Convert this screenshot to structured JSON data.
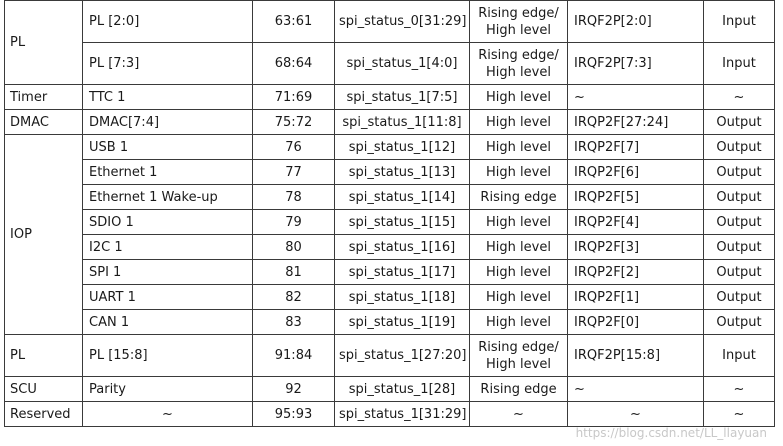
{
  "rows": [
    {
      "group": "PL",
      "name": "PL [2:0]",
      "irq": "63:61",
      "spi": "spi_status_0[31:29]",
      "sens": "Rising edge/\nHigh level",
      "irqf": "IRQF2P[2:0]",
      "dir": "Input"
    },
    {
      "name": "PL [7:3]",
      "irq": "68:64",
      "spi": "spi_status_1[4:0]",
      "sens": "Rising edge/\nHigh level",
      "irqf": "IRQF2P[7:3]",
      "dir": "Input"
    },
    {
      "group": "Timer",
      "name": "TTC 1",
      "irq": "71:69",
      "spi": "spi_status_1[7:5]",
      "sens": "High level",
      "irqf": "~",
      "dir": "~"
    },
    {
      "group": "DMAC",
      "name": "DMAC[7:4]",
      "irq": "75:72",
      "spi": "spi_status_1[11:8]",
      "sens": "High level",
      "irqf": "IRQP2F[27:24]",
      "dir": "Output"
    },
    {
      "group": "IOP",
      "name": "USB 1",
      "irq": "76",
      "spi": "spi_status_1[12]",
      "sens": "High level",
      "irqf": "IRQP2F[7]",
      "dir": "Output"
    },
    {
      "name": "Ethernet 1",
      "irq": "77",
      "spi": "spi_status_1[13]",
      "sens": "High level",
      "irqf": "IRQP2F[6]",
      "dir": "Output"
    },
    {
      "name": "Ethernet 1 Wake-up",
      "irq": "78",
      "spi": "spi_status_1[14]",
      "sens": "Rising edge",
      "irqf": "IRQP2F[5]",
      "dir": "Output"
    },
    {
      "name": "SDIO 1",
      "irq": "79",
      "spi": "spi_status_1[15]",
      "sens": "High level",
      "irqf": "IRQP2F[4]",
      "dir": "Output"
    },
    {
      "name": "I2C 1",
      "irq": "80",
      "spi": "spi_status_1[16]",
      "sens": "High level",
      "irqf": "IRQP2F[3]",
      "dir": "Output"
    },
    {
      "name": "SPI 1",
      "irq": "81",
      "spi": "spi_status_1[17]",
      "sens": "High level",
      "irqf": "IRQP2F[2]",
      "dir": "Output"
    },
    {
      "name": "UART 1",
      "irq": "82",
      "spi": "spi_status_1[18]",
      "sens": "High level",
      "irqf": "IRQP2F[1]",
      "dir": "Output"
    },
    {
      "name": "CAN 1",
      "irq": "83",
      "spi": "spi_status_1[19]",
      "sens": "High level",
      "irqf": "IRQP2F[0]",
      "dir": "Output"
    },
    {
      "group": "PL",
      "name": "PL [15:8]",
      "irq": "91:84",
      "spi": "spi_status_1[27:20]",
      "sens": "Rising edge/\nHigh level",
      "irqf": "IRQF2P[15:8]",
      "dir": "Input"
    },
    {
      "group": "SCU",
      "name": "Parity",
      "irq": "92",
      "spi": "spi_status_1[28]",
      "sens": "Rising edge",
      "irqf": "~",
      "dir": "~"
    },
    {
      "group": "Reserved",
      "name": "~",
      "irq": "95:93",
      "spi": "spi_status_1[31:29]",
      "sens": "~",
      "irqf": "~",
      "dir": "~"
    }
  ],
  "watermark": "https://blog.csdn.net/LL_llayuan"
}
